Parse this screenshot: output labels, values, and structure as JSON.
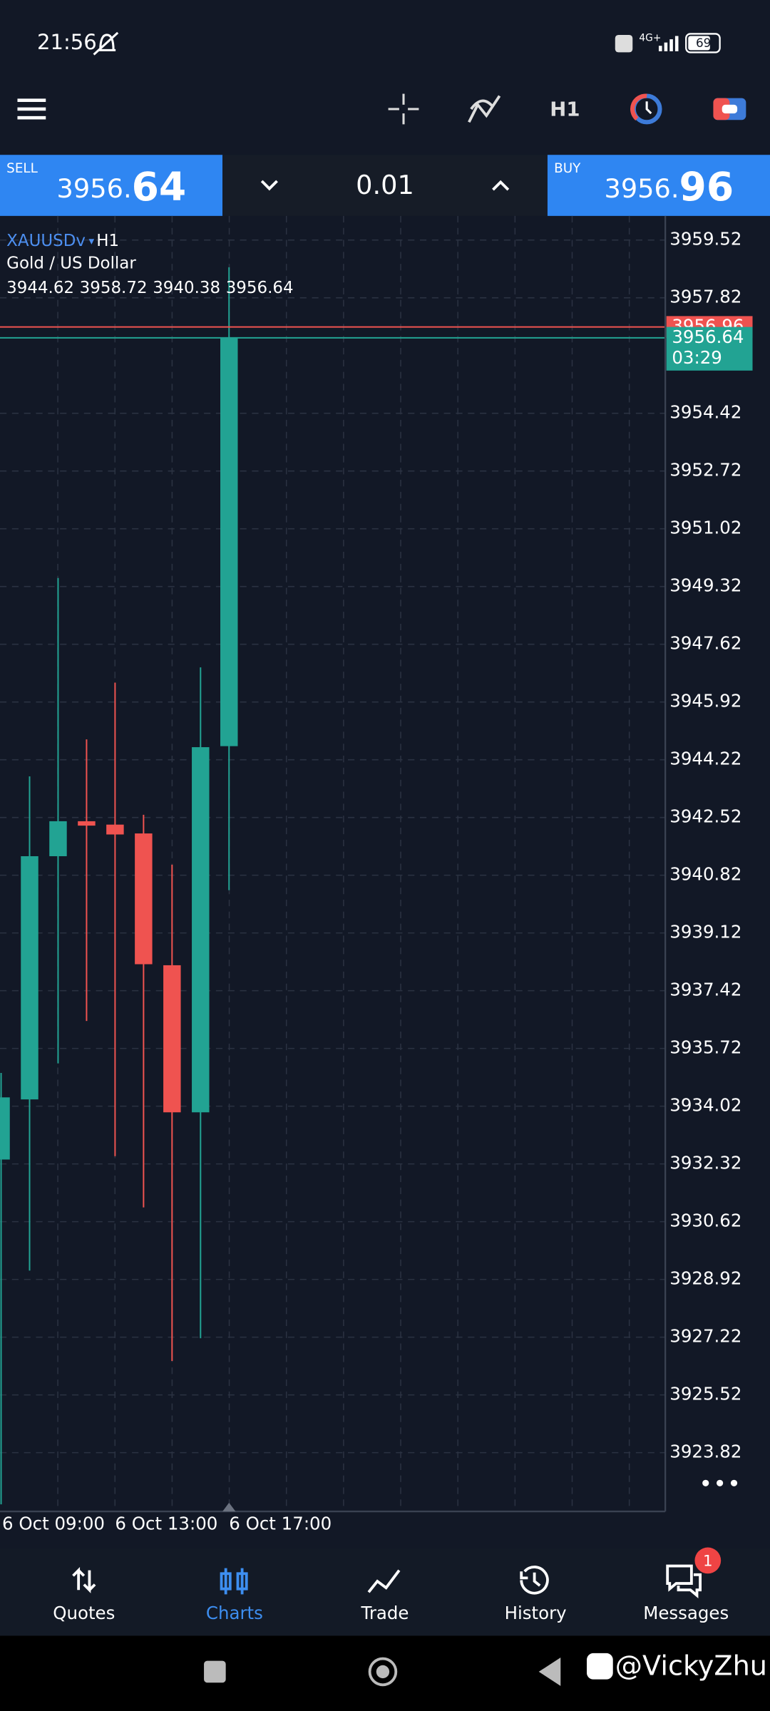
{
  "status_bar": {
    "time": "21:56",
    "network": "4G+",
    "battery": "69"
  },
  "toolbar": {
    "timeframe": "H1"
  },
  "trade_panel": {
    "sell": {
      "label": "SELL",
      "price_main": "3956.",
      "price_big": "64"
    },
    "volume": "0.01",
    "buy": {
      "label": "BUY",
      "price_main": "3956.",
      "price_big": "96"
    }
  },
  "chart_data": {
    "type": "candlestick",
    "symbol": "XAUUSDv",
    "timeframe": "H1",
    "description": "Gold / US Dollar",
    "ohlc": [
      3944.62,
      3958.72,
      3940.38,
      3956.64
    ],
    "categories": [
      "6 Oct 09:00",
      null,
      null,
      null,
      "6 Oct 13:00",
      null,
      null,
      null,
      "6 Oct 17:00"
    ],
    "open": [
      3932.45,
      3934.22,
      3941.38,
      3942.41,
      3942.31,
      3942.05,
      3938.17,
      3933.84,
      3944.62
    ],
    "high": [
      3935.0,
      3943.73,
      3949.57,
      3944.82,
      3946.49,
      3942.6,
      3941.13,
      3946.94,
      3958.72
    ],
    "low": [
      3922.3,
      3929.18,
      3935.28,
      3936.53,
      3932.55,
      3931.04,
      3926.52,
      3927.19,
      3940.38
    ],
    "close": [
      3934.28,
      3941.38,
      3942.41,
      3942.28,
      3942.02,
      3938.2,
      3933.84,
      3944.59,
      3956.64
    ],
    "up_color": "#22a393",
    "down_color": "#ef5350",
    "ylim": [
      3922.09,
      3960.23
    ],
    "yticks": [
      3959.52,
      3957.82,
      3954.42,
      3952.72,
      3951.02,
      3949.32,
      3947.62,
      3945.92,
      3944.22,
      3942.52,
      3940.82,
      3939.12,
      3937.42,
      3935.72,
      3934.02,
      3932.32,
      3930.62,
      3928.92,
      3927.22,
      3925.52,
      3923.82
    ],
    "grid": true,
    "ask_line": 3956.96,
    "bid_line": 3956.64,
    "bar_timer": "03:29"
  },
  "nav": {
    "items": [
      "Quotes",
      "Charts",
      "Trade",
      "History",
      "Messages"
    ],
    "active": 1,
    "badge": "1"
  },
  "watermark": "@VickyZhu"
}
